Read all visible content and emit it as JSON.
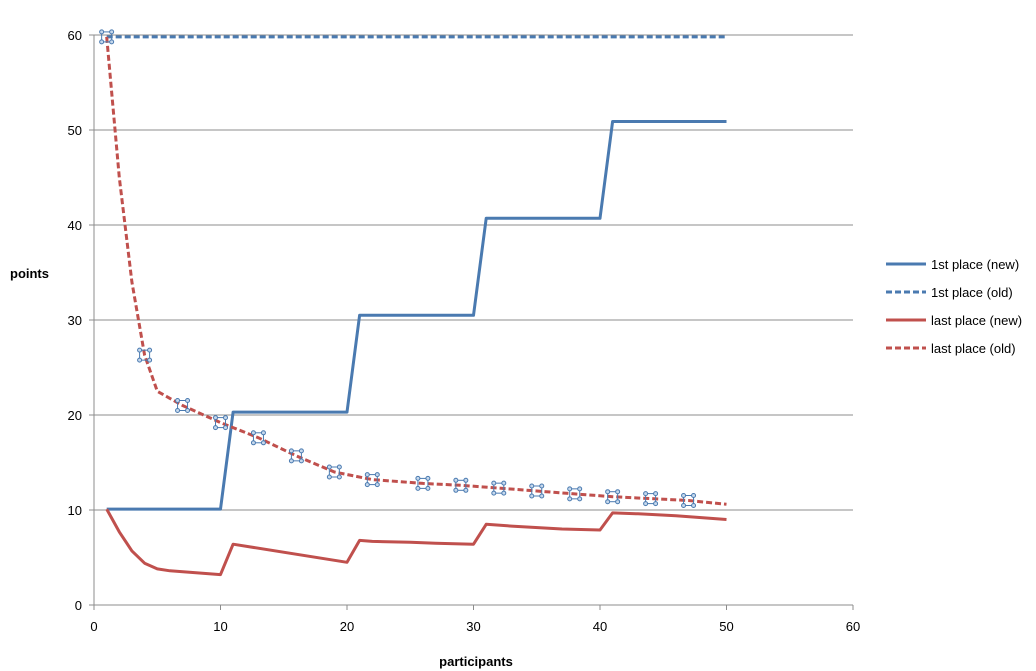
{
  "chart_data": {
    "type": "line",
    "title": "",
    "xlabel": "participants",
    "ylabel": "points",
    "xlim": [
      0,
      60
    ],
    "ylim": [
      0,
      60
    ],
    "xticks": [
      0,
      10,
      20,
      30,
      40,
      50,
      60
    ],
    "yticks": [
      0,
      10,
      20,
      30,
      40,
      50,
      60
    ],
    "grid": "horizontal",
    "legend_position": "right",
    "series": [
      {
        "name": "1st place (new)",
        "color": "#4a7ab0",
        "dash": "solid",
        "x": [
          1,
          10,
          11,
          20,
          21,
          30,
          31,
          40,
          41,
          50
        ],
        "y": [
          10.1,
          10.1,
          20.3,
          20.3,
          30.5,
          30.5,
          40.7,
          40.7,
          50.9,
          50.9
        ]
      },
      {
        "name": "1st place (old)",
        "color": "#4a7ab0",
        "dash": "dashed",
        "x": [
          1,
          50
        ],
        "y": [
          59.8,
          59.8
        ]
      },
      {
        "name": "last place (new)",
        "color": "#c0504d",
        "dash": "solid",
        "x": [
          1,
          2,
          3,
          4,
          5,
          6,
          10,
          11,
          20,
          21,
          22,
          25,
          27,
          30,
          31,
          33,
          37,
          40,
          41,
          43,
          46,
          50
        ],
        "y": [
          10.1,
          7.7,
          5.7,
          4.4,
          3.8,
          3.6,
          3.2,
          6.4,
          4.5,
          6.8,
          6.7,
          6.6,
          6.5,
          6.4,
          8.5,
          8.3,
          8.0,
          7.9,
          9.7,
          9.6,
          9.4,
          9.0
        ]
      },
      {
        "name": "last place (old)",
        "color": "#c0504d",
        "dash": "dashed",
        "x": [
          1,
          2,
          3,
          4,
          5,
          7,
          10,
          13,
          16,
          19,
          22,
          26,
          29,
          32,
          35,
          38,
          41,
          44,
          47,
          50
        ],
        "y": [
          59.8,
          45.0,
          34.0,
          26.3,
          22.5,
          21.0,
          19.2,
          17.6,
          15.7,
          14.0,
          13.2,
          12.8,
          12.6,
          12.3,
          12.0,
          11.7,
          11.4,
          11.2,
          11.0,
          10.6
        ]
      }
    ],
    "markers": {
      "series": "last place (old)",
      "color": "#4a7ab0",
      "x": [
        1,
        4,
        7,
        10,
        13,
        16,
        19,
        22,
        26,
        29,
        32,
        35,
        38,
        41,
        44,
        47
      ],
      "y": [
        59.8,
        26.3,
        21.0,
        19.2,
        17.6,
        15.7,
        14.0,
        13.2,
        12.8,
        12.6,
        12.3,
        12.0,
        11.7,
        11.4,
        11.2,
        11.0
      ]
    }
  }
}
